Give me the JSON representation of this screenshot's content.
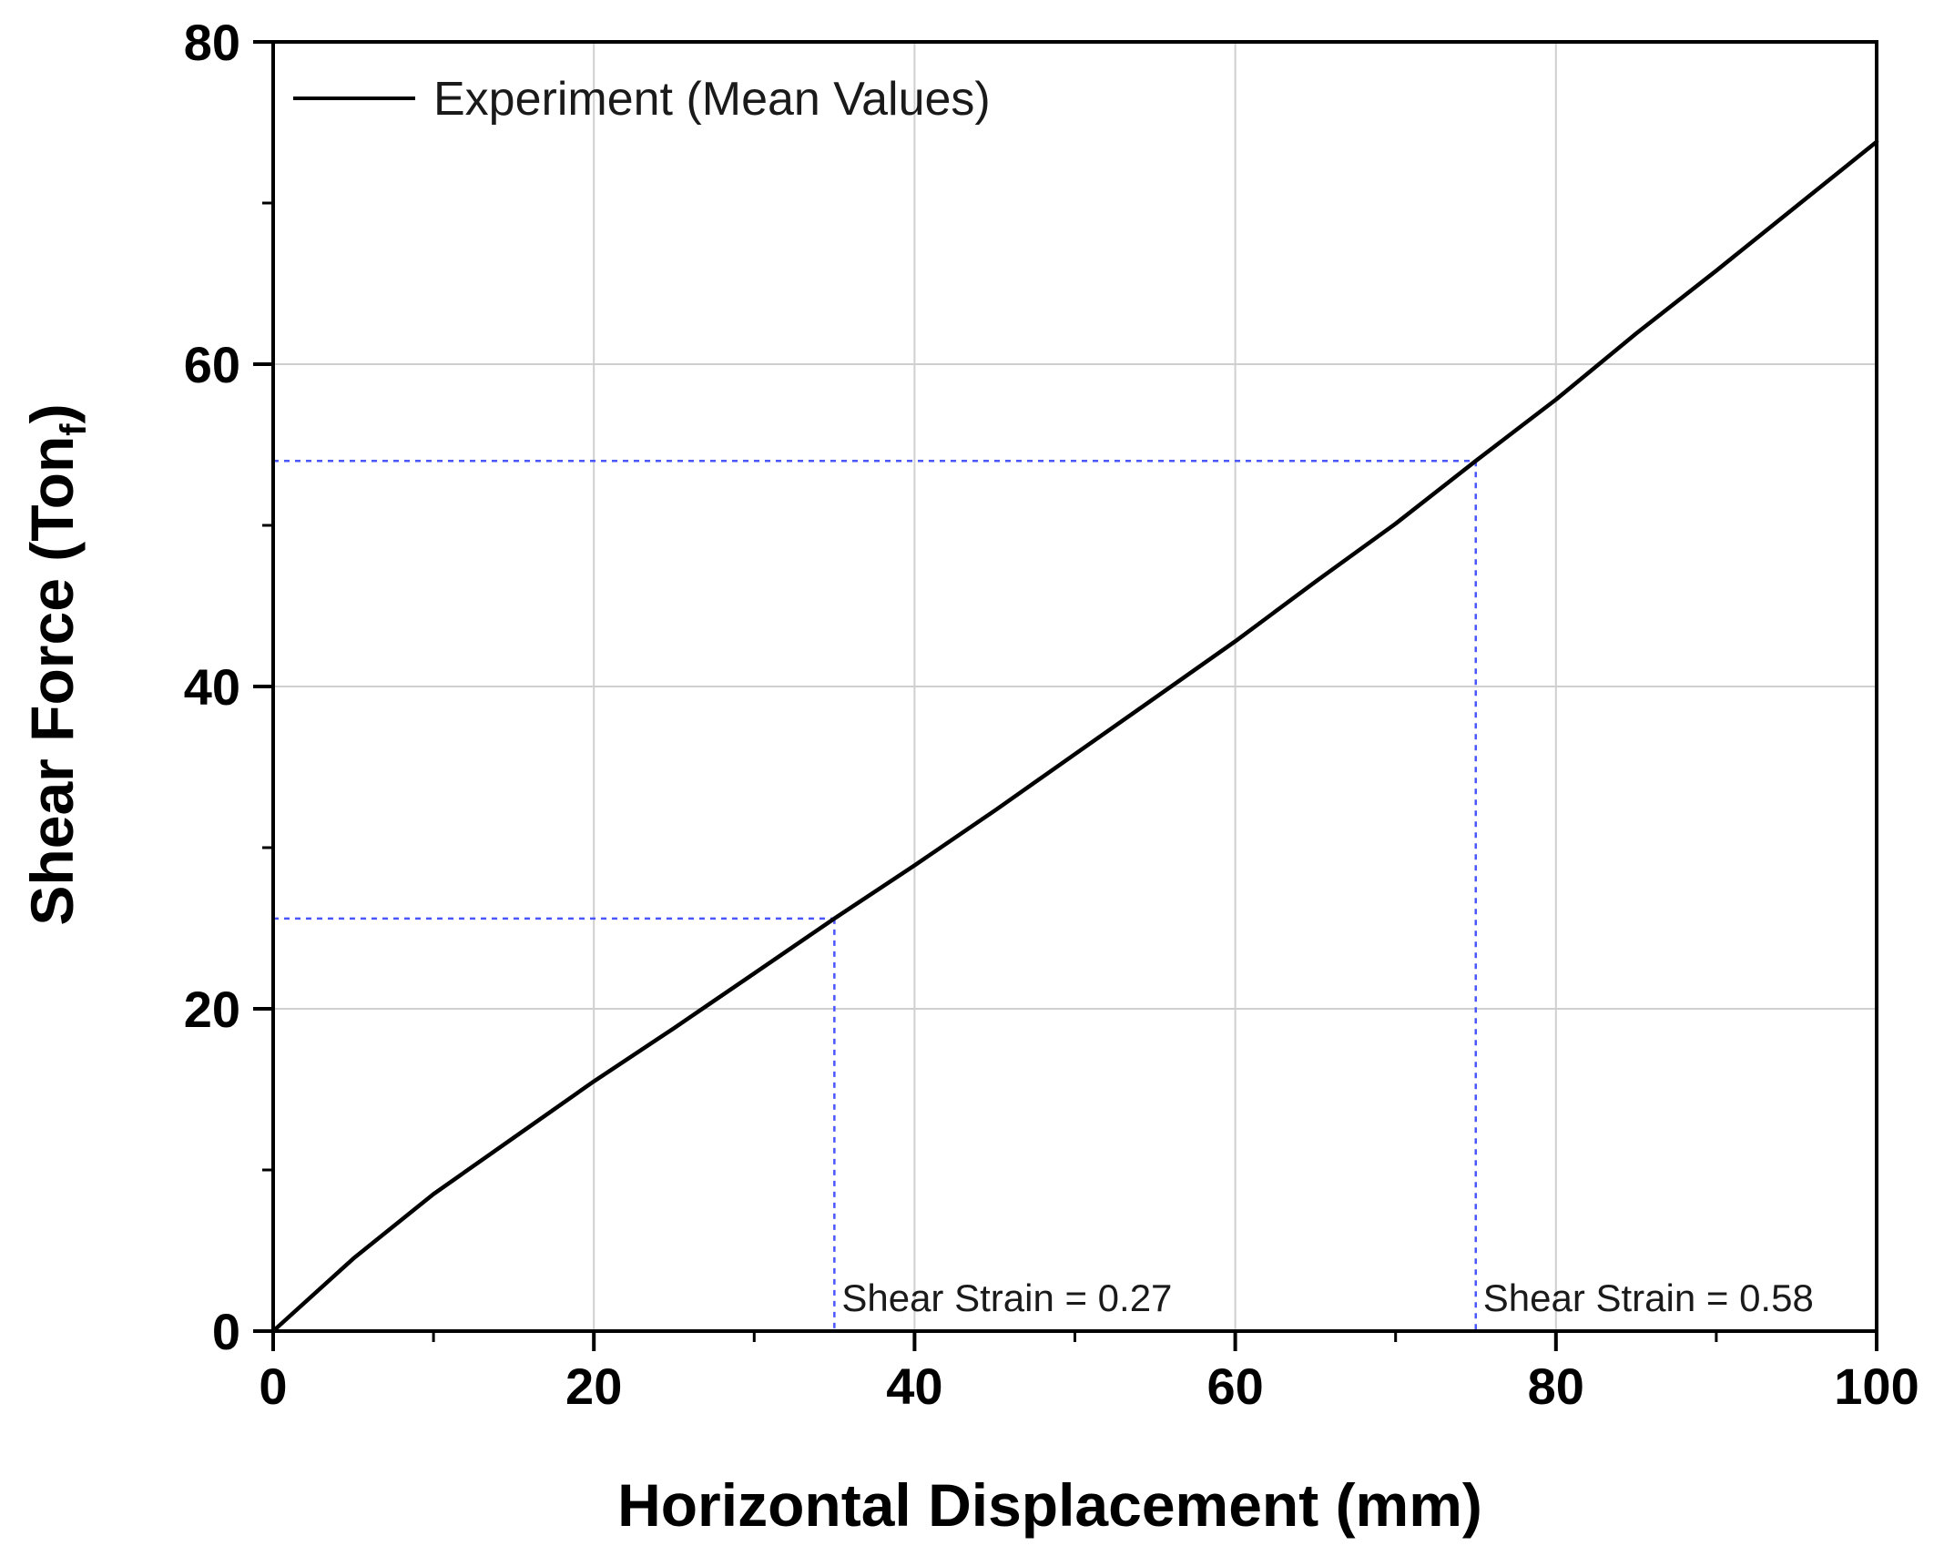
{
  "chart_data": {
    "type": "line",
    "title": "",
    "xlabel": "Horizontal Displacement (mm)",
    "ylabel_main": "Shear Force (Ton",
    "ylabel_sub": "f",
    "ylabel_close": ")",
    "xlim": [
      0,
      100
    ],
    "ylim": [
      0,
      80
    ],
    "x_major_ticks": [
      0,
      20,
      40,
      60,
      80,
      100
    ],
    "x_minor_ticks": [
      10,
      30,
      50,
      70,
      90
    ],
    "y_major_ticks": [
      0,
      20,
      40,
      60,
      80
    ],
    "y_minor_ticks": [
      10,
      30,
      50,
      70
    ],
    "x_tick_labels": [
      "0",
      "20",
      "40",
      "60",
      "80",
      "100"
    ],
    "y_tick_labels": [
      "0",
      "20",
      "40",
      "60",
      "80"
    ],
    "grid": true,
    "legend_position": "top-left",
    "series": [
      {
        "name": "Experiment (Mean Values)",
        "color": "#000000",
        "x": [
          0,
          5,
          10,
          15,
          20,
          25,
          30,
          35,
          40,
          45,
          50,
          55,
          60,
          65,
          70,
          75,
          80,
          85,
          90,
          95,
          100
        ],
        "y": [
          0,
          4.5,
          8.5,
          12.0,
          15.5,
          18.8,
          22.2,
          25.6,
          28.9,
          32.3,
          35.8,
          39.3,
          42.8,
          46.5,
          50.1,
          54.0,
          57.8,
          61.9,
          65.8,
          69.8,
          73.8
        ]
      }
    ],
    "annotations": [
      {
        "text": "Shear Strain = 0.27",
        "x": 35,
        "y": 25.6,
        "color": "#4a56ff"
      },
      {
        "text": "Shear Strain = 0.58",
        "x": 75,
        "y": 54.0,
        "color": "#4a56ff"
      }
    ]
  }
}
